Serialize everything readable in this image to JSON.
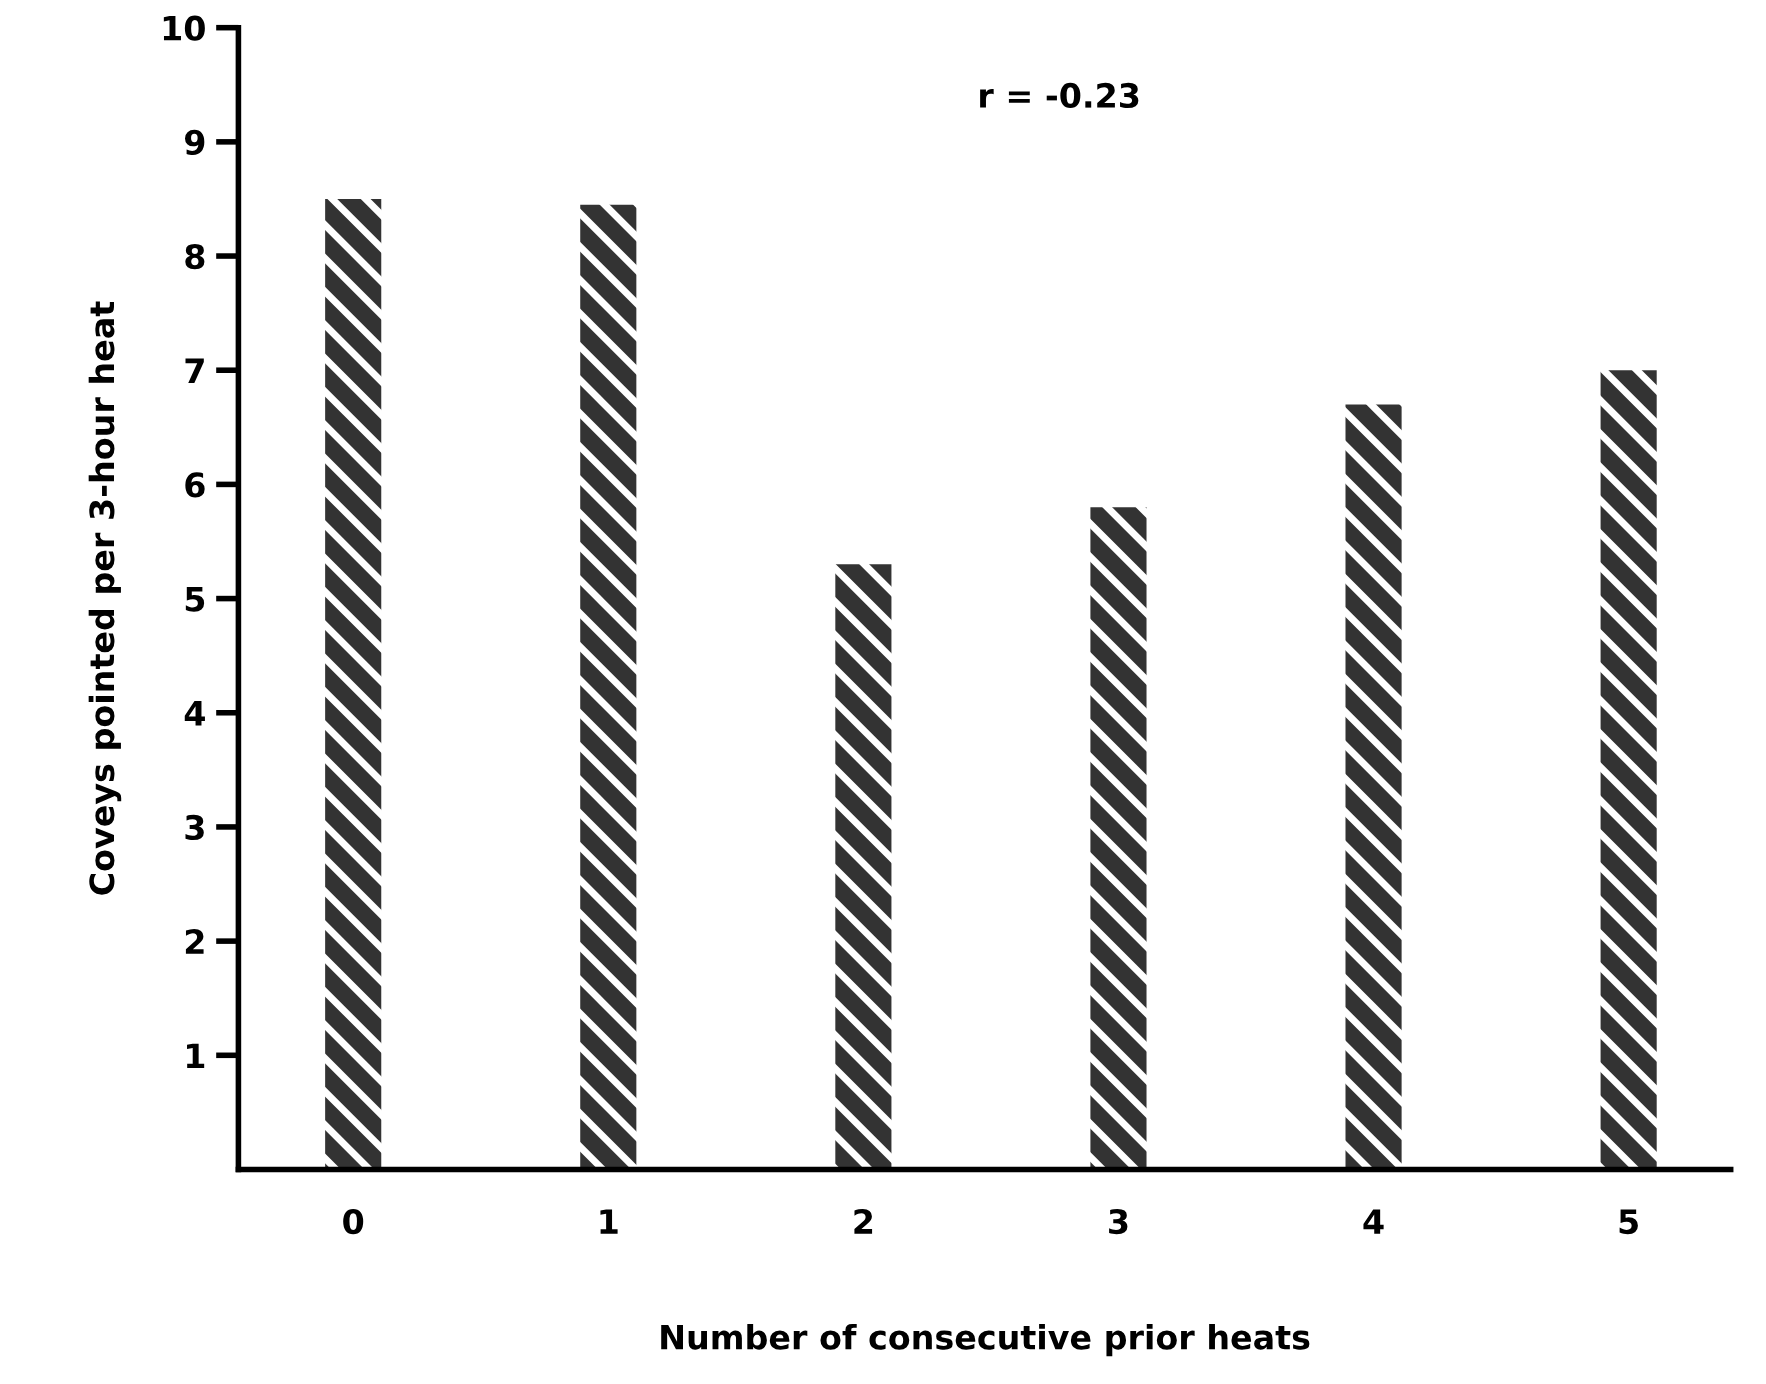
{
  "chart_data": {
    "type": "bar",
    "xlabel": "Number of consecutive prior heats",
    "ylabel": "Coveys pointed per 3-hour heat",
    "categories": [
      "0",
      "1",
      "2",
      "3",
      "4",
      "5"
    ],
    "values": [
      8.5,
      8.45,
      5.3,
      5.8,
      6.7,
      7.0
    ],
    "color": "#333333",
    "ylim": [
      0,
      10
    ],
    "yticks": [
      1,
      2,
      3,
      4,
      5,
      6,
      7,
      8,
      9,
      10
    ],
    "annotations": [
      "r = -0.23"
    ],
    "grid": false,
    "legend": false
  }
}
